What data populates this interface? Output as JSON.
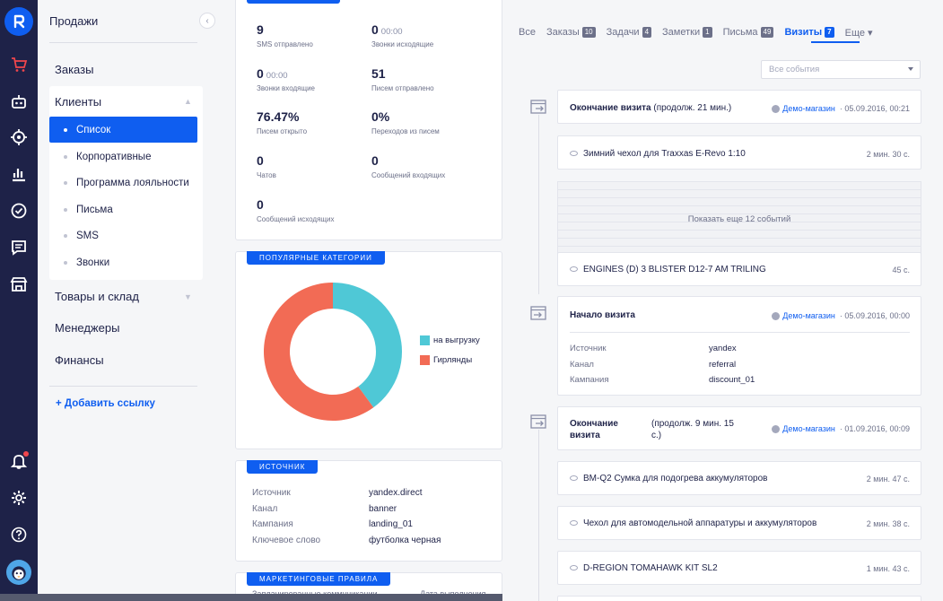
{
  "sidebar": {
    "title": "Продажи",
    "nav": {
      "orders": "Заказы",
      "clients": "Клиенты",
      "goods": "Товары и склад",
      "managers": "Менеджеры",
      "finance": "Финансы"
    },
    "client_sub": [
      {
        "label": "Список",
        "active": true
      },
      {
        "label": "Корпоративные",
        "active": false
      },
      {
        "label": "Программа лояльности",
        "active": false
      },
      {
        "label": "Письма",
        "active": false
      },
      {
        "label": "SMS",
        "active": false
      },
      {
        "label": "Звонки",
        "active": false
      }
    ],
    "add_link": "+  Добавить ссылку"
  },
  "stats": [
    {
      "value": "9",
      "suffix": "",
      "label": "SMS отправлено"
    },
    {
      "value": "0",
      "suffix": "00:00",
      "label": "Звонки исходящие"
    },
    {
      "value": "0",
      "suffix": "00:00",
      "label": "Звонки входящие"
    },
    {
      "value": "51",
      "suffix": "",
      "label": "Писем отправлено"
    },
    {
      "value": "76.47%",
      "suffix": "",
      "label": "Писем открыто"
    },
    {
      "value": "0%",
      "suffix": "",
      "label": "Переходов из писем"
    },
    {
      "value": "0",
      "suffix": "",
      "label": "Чатов"
    },
    {
      "value": "0",
      "suffix": "",
      "label": "Сообщений входящих"
    },
    {
      "value": "0",
      "suffix": "",
      "label": "Сообщений исходящих"
    }
  ],
  "popular": {
    "tag": "Популярные категории",
    "slices": [
      {
        "name": "на выгрузку",
        "value": 40,
        "color": "#4fc8d6"
      },
      {
        "name": "Гирлянды",
        "value": 60,
        "color": "#f26b55"
      }
    ]
  },
  "source_card": {
    "tag": "Источник",
    "rows": [
      {
        "k": "Источник",
        "v": "yandex.direct"
      },
      {
        "k": "Канал",
        "v": "banner"
      },
      {
        "k": "Кампания",
        "v": "landing_01"
      },
      {
        "k": "Ключевое слово",
        "v": "футболка черная"
      }
    ]
  },
  "marketing": {
    "tag": "Маркетинговые правила",
    "col1": "Запланированные коммуникации",
    "col2": "Дата выполнения"
  },
  "tabs": [
    {
      "label": "Все",
      "badge": ""
    },
    {
      "label": "Заказы",
      "badge": "10"
    },
    {
      "label": "Задачи",
      "badge": "4"
    },
    {
      "label": "Заметки",
      "badge": "1"
    },
    {
      "label": "Письма",
      "badge": "49"
    },
    {
      "label": "Визиты",
      "badge": "7",
      "active": true
    },
    {
      "label": "Еще ▾",
      "badge": ""
    }
  ],
  "filter": {
    "placeholder": "Все события"
  },
  "events": {
    "visit_end_1": {
      "title": "Окончание визита",
      "note": "(продолж. 21 мин.)",
      "shop": "Демо-магазин",
      "date": "05.09.2016, 00:21"
    },
    "page_1": {
      "title": "Зимний чехол для Traxxas E-Revo 1:10",
      "dur": "2 мин. 30 с."
    },
    "more": "Показать еще 12 событий",
    "page_2": {
      "title": "ENGINES (D) 3 BLISTER D12-7 AM TRILING",
      "dur": "45 с."
    },
    "visit_start": {
      "title": "Начало визита",
      "shop": "Демо-магазин",
      "date": "05.09.2016, 00:00",
      "rows": [
        {
          "k": "Источник",
          "v": "yandex"
        },
        {
          "k": "Канал",
          "v": "referral"
        },
        {
          "k": "Кампания",
          "v": "discount_01"
        }
      ]
    },
    "visit_end_2": {
      "title_line1": "Окончание",
      "title_line2": "визита",
      "note_line1": "(продолж. 9 мин. 15",
      "note_line2": "с.)",
      "shop": "Демо-магазин",
      "date": "01.09.2016, 00:09"
    },
    "page_3": {
      "title": "BM-Q2 Сумка для подогрева аккумуляторов",
      "dur": "2 мин. 47 с."
    },
    "page_4": {
      "title": "Чехол для автомодельной аппаратуры и аккумуляторов",
      "dur": "2 мин. 38 с."
    },
    "page_5": {
      "title": "D-REGION TOMAHAWK KIT SL2",
      "dur": "1 мин. 43 с."
    }
  },
  "separator": "·"
}
